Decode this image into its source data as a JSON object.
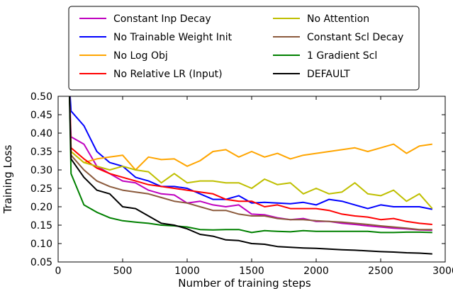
{
  "chart_data": {
    "type": "line",
    "xlabel": "Number of training steps",
    "ylabel": "Training Loss",
    "xlim": [
      0,
      3000
    ],
    "ylim": [
      0.05,
      0.5
    ],
    "xticks": [
      "0",
      "500",
      "1000",
      "1500",
      "2000",
      "2500",
      "3000"
    ],
    "yticks": [
      "0.05",
      "0.10",
      "0.15",
      "0.20",
      "0.25",
      "0.30",
      "0.35",
      "0.40",
      "0.45",
      "0.50"
    ],
    "grid": false,
    "legend": "top, outside plot, 2 columns",
    "x": [
      100,
      200,
      300,
      400,
      500,
      600,
      700,
      800,
      900,
      1000,
      1100,
      1200,
      1300,
      1400,
      1500,
      1600,
      1700,
      1800,
      1900,
      2000,
      2100,
      2200,
      2300,
      2400,
      2500,
      2600,
      2700,
      2800,
      2900
    ],
    "series": [
      {
        "name": "Constant Inp Decay",
        "color": "#bf00bf",
        "values": [
          0.39,
          0.37,
          0.31,
          0.29,
          0.27,
          0.265,
          0.245,
          0.235,
          0.232,
          0.21,
          0.215,
          0.205,
          0.2,
          0.205,
          0.18,
          0.178,
          0.17,
          0.165,
          0.168,
          0.16,
          0.16,
          0.155,
          0.152,
          0.148,
          0.145,
          0.142,
          0.14,
          0.137,
          0.136
        ]
      },
      {
        "name": "No Trainable Weight Init",
        "color": "#0000ff",
        "values": [
          0.46,
          0.42,
          0.35,
          0.32,
          0.31,
          0.28,
          0.27,
          0.255,
          0.255,
          0.25,
          0.235,
          0.22,
          0.22,
          0.23,
          0.21,
          0.212,
          0.21,
          0.208,
          0.212,
          0.205,
          0.22,
          0.215,
          0.205,
          0.195,
          0.205,
          0.2,
          0.2,
          0.2,
          0.193
        ]
      },
      {
        "name": "No Log Obj",
        "color": "#ffa500",
        "values": [
          0.35,
          0.32,
          0.33,
          0.335,
          0.34,
          0.3,
          0.335,
          0.328,
          0.33,
          0.31,
          0.325,
          0.35,
          0.355,
          0.335,
          0.35,
          0.335,
          0.345,
          0.33,
          0.34,
          0.345,
          0.35,
          0.355,
          0.36,
          0.35,
          0.36,
          0.37,
          0.345,
          0.365,
          0.37
        ]
      },
      {
        "name": "No Relative LR (Input)",
        "color": "#ff0000",
        "values": [
          0.36,
          0.33,
          0.305,
          0.29,
          0.28,
          0.27,
          0.26,
          0.255,
          0.25,
          0.245,
          0.24,
          0.235,
          0.22,
          0.215,
          0.215,
          0.2,
          0.205,
          0.195,
          0.195,
          0.195,
          0.19,
          0.18,
          0.175,
          0.172,
          0.165,
          0.168,
          0.16,
          0.155,
          0.152
        ]
      },
      {
        "name": "No Attention",
        "color": "#bfbf00",
        "values": [
          0.35,
          0.32,
          0.31,
          0.3,
          0.31,
          0.3,
          0.295,
          0.265,
          0.29,
          0.265,
          0.27,
          0.27,
          0.265,
          0.265,
          0.25,
          0.275,
          0.26,
          0.265,
          0.235,
          0.25,
          0.235,
          0.24,
          0.265,
          0.235,
          0.23,
          0.245,
          0.215,
          0.235,
          0.195
        ]
      },
      {
        "name": "Constant Scl Decay",
        "color": "#8b5a3c",
        "values": [
          0.34,
          0.3,
          0.27,
          0.255,
          0.245,
          0.24,
          0.235,
          0.225,
          0.215,
          0.21,
          0.2,
          0.19,
          0.19,
          0.18,
          0.175,
          0.175,
          0.168,
          0.165,
          0.165,
          0.162,
          0.16,
          0.158,
          0.155,
          0.152,
          0.148,
          0.145,
          0.142,
          0.138,
          0.138
        ]
      },
      {
        "name": "1 Gradient Scl",
        "color": "#008000",
        "values": [
          0.29,
          0.205,
          0.185,
          0.17,
          0.162,
          0.158,
          0.155,
          0.15,
          0.148,
          0.145,
          0.138,
          0.137,
          0.138,
          0.138,
          0.13,
          0.135,
          0.133,
          0.132,
          0.135,
          0.133,
          0.133,
          0.133,
          0.133,
          0.133,
          0.13,
          0.13,
          0.131,
          0.131,
          0.13
        ]
      },
      {
        "name": "DEFAULT",
        "color": "#000000",
        "values": [
          0.33,
          0.28,
          0.245,
          0.235,
          0.2,
          0.195,
          0.175,
          0.155,
          0.15,
          0.14,
          0.125,
          0.12,
          0.11,
          0.108,
          0.1,
          0.098,
          0.092,
          0.09,
          0.088,
          0.087,
          0.085,
          0.083,
          0.082,
          0.08,
          0.078,
          0.077,
          0.075,
          0.074,
          0.072
        ]
      }
    ]
  }
}
